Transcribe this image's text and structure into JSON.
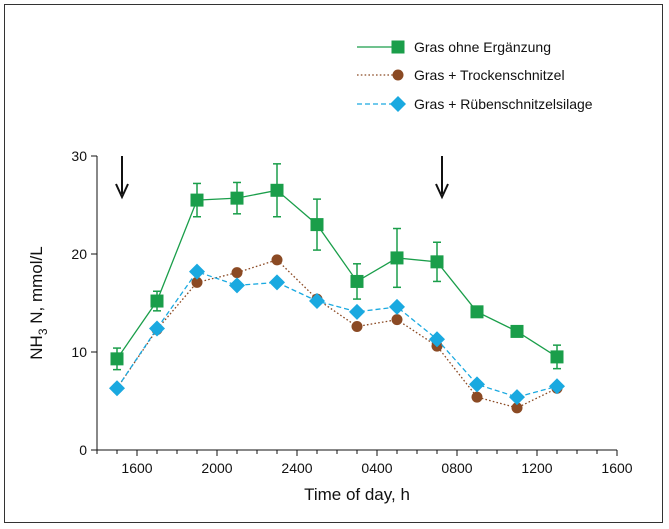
{
  "chart_data": {
    "type": "line",
    "xlabel": "Time of day, h",
    "ylabel_main": "NH",
    "ylabel_sub": "3",
    "ylabel_rest": " N, mmol/L",
    "ylim": [
      0,
      30
    ],
    "yticks": [
      0,
      10,
      20,
      30
    ],
    "xlim": [
      0,
      26
    ],
    "xticks": [
      {
        "x": 2,
        "label": "1600"
      },
      {
        "x": 6,
        "label": "2000"
      },
      {
        "x": 10,
        "label": "2400"
      },
      {
        "x": 14,
        "label": "0400"
      },
      {
        "x": 18,
        "label": "0800"
      },
      {
        "x": 22,
        "label": "1200"
      },
      {
        "x": 26,
        "label": "1600"
      }
    ],
    "xminor_step": 1,
    "arrows": [
      1.25,
      17.25
    ],
    "grid": false,
    "legend_position": "top-right",
    "series": [
      {
        "name": "Gras ohne Ergänzung",
        "color": "#1a9e4a",
        "line": "solid",
        "marker": "square",
        "x": [
          1,
          3,
          5,
          7,
          9,
          11,
          13,
          15,
          17,
          19,
          21,
          23,
          25
        ],
        "y": [
          9.3,
          15.2,
          25.5,
          25.7,
          26.5,
          23.0,
          17.2,
          19.6,
          19.2,
          14.1,
          12.1,
          9.5,
          null
        ],
        "err": [
          1.1,
          1.0,
          1.7,
          1.6,
          2.7,
          2.6,
          1.8,
          3.0,
          2.0,
          0,
          0,
          1.2,
          null
        ]
      },
      {
        "name": "Gras + Trockenschnitzel",
        "color": "#8b4a24",
        "line": "dotted",
        "marker": "circle",
        "x": [
          1,
          3,
          5,
          7,
          9,
          11,
          13,
          15,
          17,
          19,
          21,
          23,
          25
        ],
        "y": [
          6.3,
          12.3,
          17.1,
          18.1,
          19.4,
          15.4,
          12.6,
          13.3,
          10.6,
          5.4,
          4.3,
          6.3,
          null
        ]
      },
      {
        "name": "Gras + Rübenschnitzelsilage",
        "color": "#1aa9e0",
        "line": "dashed",
        "marker": "diamond",
        "x": [
          1,
          3,
          5,
          7,
          9,
          11,
          13,
          15,
          17,
          19,
          21,
          23,
          25
        ],
        "y": [
          6.3,
          12.4,
          18.2,
          16.8,
          17.1,
          15.2,
          14.1,
          14.6,
          11.3,
          6.7,
          5.4,
          6.5,
          null
        ]
      }
    ]
  }
}
